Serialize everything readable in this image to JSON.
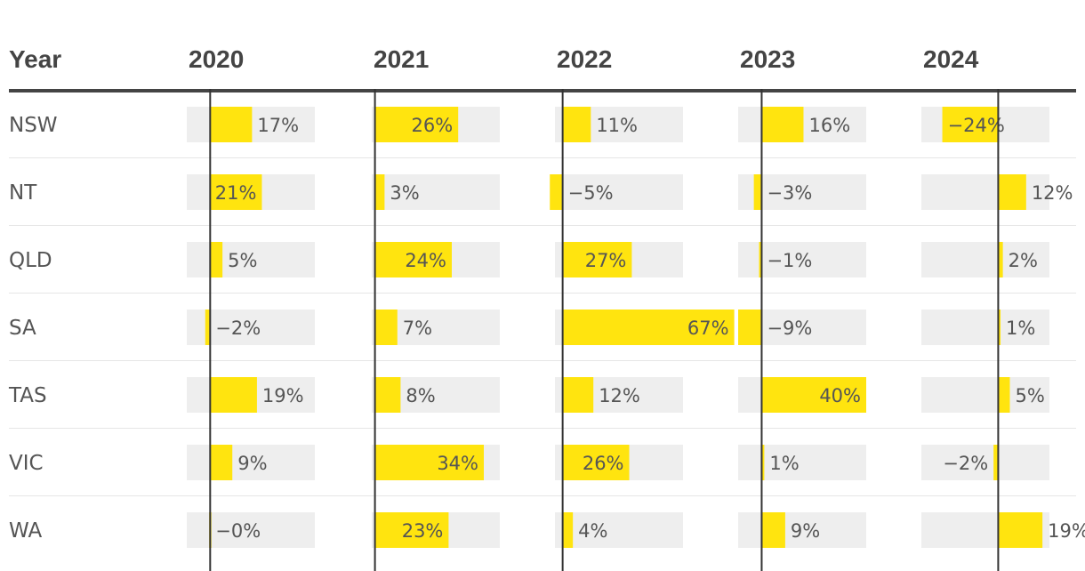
{
  "colors": {
    "bar": "#ffe40f",
    "track": "#eeeeee",
    "text": "#555555",
    "header_text": "#444444",
    "rule": "#444444",
    "zero_line": "#333333",
    "row_divider": "#e6e6e6"
  },
  "chart_data": {
    "type": "table",
    "header_label": "Year",
    "columns": [
      "2020",
      "2021",
      "2022",
      "2023",
      "2024"
    ],
    "rows": [
      {
        "state": "NSW",
        "values": [
          17,
          26,
          11,
          16,
          -24
        ],
        "labels": [
          "17%",
          "26%",
          "11%",
          "16%",
          "−24%"
        ]
      },
      {
        "state": "NT",
        "values": [
          21,
          3,
          -5,
          -3,
          12
        ],
        "labels": [
          "21%",
          "3%",
          "−5%",
          "−3%",
          "12%"
        ]
      },
      {
        "state": "QLD",
        "values": [
          5,
          24,
          27,
          -1,
          2
        ],
        "labels": [
          "5%",
          "24%",
          "27%",
          "−1%",
          "2%"
        ]
      },
      {
        "state": "SA",
        "values": [
          -2,
          7,
          67,
          -9,
          1
        ],
        "labels": [
          "−2%",
          "7%",
          "67%",
          "−9%",
          "1%"
        ]
      },
      {
        "state": "TAS",
        "values": [
          19,
          8,
          12,
          40,
          5
        ],
        "labels": [
          "19%",
          "8%",
          "12%",
          "40%",
          "5%"
        ]
      },
      {
        "state": "VIC",
        "values": [
          9,
          34,
          26,
          1,
          -2
        ],
        "labels": [
          "9%",
          "34%",
          "26%",
          "1%",
          "−2%"
        ]
      },
      {
        "state": "WA",
        "values": [
          -0.4,
          23,
          4,
          9,
          19
        ],
        "labels": [
          "−0%",
          "23%",
          "4%",
          "9%",
          "19%"
        ]
      }
    ],
    "column_ranges": [
      [
        -9.5,
        42.5
      ],
      [
        -1,
        39
      ],
      [
        -3,
        47
      ],
      [
        -9,
        40
      ],
      [
        -33,
        22
      ]
    ]
  }
}
